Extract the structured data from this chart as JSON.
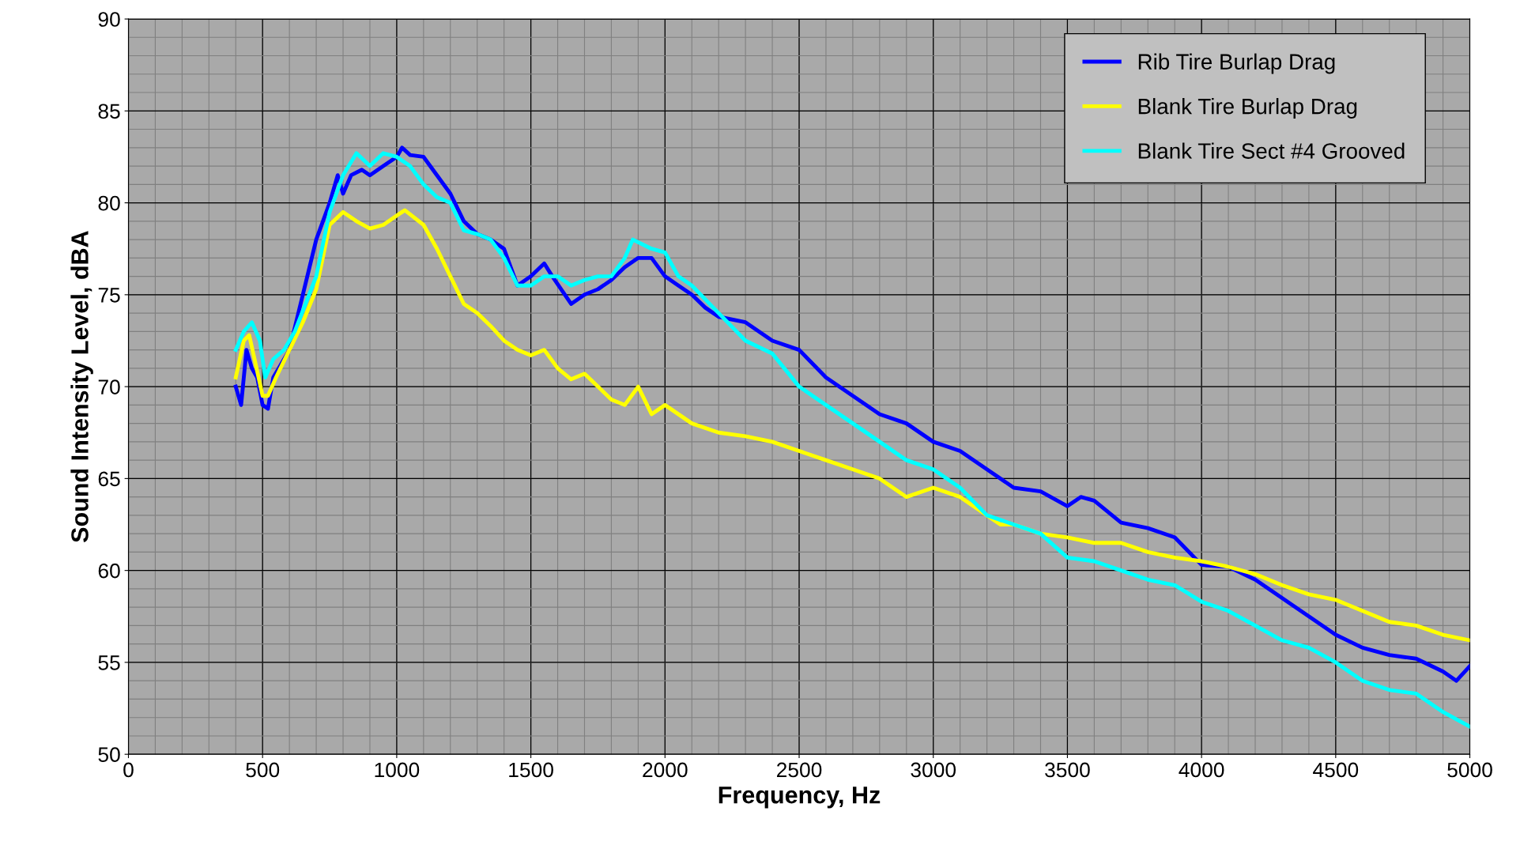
{
  "chart_data": {
    "type": "line",
    "xlabel": "Frequency, Hz",
    "ylabel": "Sound Intensity Level, dBA",
    "xlim": [
      0,
      5000
    ],
    "xticks": [
      0,
      500,
      1000,
      1500,
      2000,
      2500,
      3000,
      3500,
      4000,
      4500,
      5000
    ],
    "ylim": [
      50,
      90
    ],
    "yticks": [
      50,
      55,
      60,
      65,
      70,
      75,
      80,
      85,
      90
    ],
    "grid": true,
    "legend": "top right",
    "marker": "none",
    "line_style": "solid",
    "series": [
      {
        "name": "Rib Tire Burlap Drag",
        "color": "#0000ff",
        "x": [
          400,
          420,
          440,
          460,
          480,
          500,
          520,
          540,
          560,
          600,
          650,
          700,
          750,
          780,
          800,
          830,
          870,
          900,
          950,
          1000,
          1020,
          1050,
          1100,
          1150,
          1200,
          1250,
          1300,
          1350,
          1400,
          1450,
          1500,
          1550,
          1580,
          1650,
          1700,
          1750,
          1800,
          1850,
          1900,
          1950,
          2000,
          2050,
          2100,
          2150,
          2200,
          2300,
          2400,
          2500,
          2600,
          2700,
          2800,
          2900,
          3000,
          3100,
          3200,
          3300,
          3400,
          3500,
          3550,
          3600,
          3700,
          3800,
          3900,
          4000,
          4100,
          4200,
          4300,
          4400,
          4500,
          4600,
          4700,
          4800,
          4900,
          4950,
          5000
        ],
        "values": [
          70,
          69,
          72,
          71,
          70.5,
          69,
          68.8,
          70.5,
          71,
          72,
          75,
          78,
          80,
          81.5,
          80.5,
          81.5,
          81.8,
          81.5,
          82,
          82.5,
          83,
          82.6,
          82.5,
          81.5,
          80.5,
          79,
          78.3,
          78,
          77.5,
          75.5,
          76,
          76.7,
          76,
          74.5,
          75,
          75.3,
          75.8,
          76.5,
          77,
          77,
          76,
          75.5,
          75,
          74.3,
          73.8,
          73.5,
          72.5,
          72,
          70.5,
          69.5,
          68.5,
          68,
          67,
          66.5,
          65.5,
          64.5,
          64.3,
          63.5,
          64,
          63.8,
          62.6,
          62.3,
          61.8,
          60.3,
          60.2,
          59.5,
          58.5,
          57.5,
          56.5,
          55.8,
          55.4,
          55.2,
          54.5,
          54,
          54.8
        ]
      },
      {
        "name": "Blank Tire Burlap Drag",
        "color": "#ffff00",
        "x": [
          400,
          430,
          450,
          470,
          500,
          520,
          550,
          600,
          650,
          700,
          750,
          800,
          850,
          900,
          950,
          1000,
          1030,
          1100,
          1150,
          1200,
          1250,
          1300,
          1350,
          1400,
          1450,
          1500,
          1550,
          1600,
          1650,
          1700,
          1750,
          1800,
          1850,
          1900,
          1950,
          2000,
          2100,
          2200,
          2300,
          2400,
          2500,
          2600,
          2700,
          2800,
          2900,
          3000,
          3100,
          3200,
          3250,
          3300,
          3400,
          3500,
          3600,
          3700,
          3800,
          3900,
          4000,
          4100,
          4200,
          4300,
          4400,
          4500,
          4600,
          4700,
          4800,
          4900,
          5000
        ],
        "values": [
          70.5,
          72.5,
          72.8,
          71.5,
          69.5,
          69.5,
          70.5,
          72,
          73.5,
          75.3,
          78.8,
          79.5,
          79,
          78.6,
          78.8,
          79.3,
          79.6,
          78.8,
          77.5,
          76,
          74.5,
          74,
          73.3,
          72.5,
          72,
          71.7,
          72,
          71,
          70.4,
          70.7,
          70,
          69.3,
          69,
          70,
          68.5,
          69,
          68,
          67.5,
          67.3,
          67,
          66.5,
          66,
          65.5,
          65,
          64,
          64.5,
          64,
          63,
          62.5,
          62.5,
          62,
          61.8,
          61.5,
          61.5,
          61,
          60.7,
          60.5,
          60.2,
          59.8,
          59.2,
          58.7,
          58.4,
          57.8,
          57.2,
          57,
          56.5,
          56.2
        ]
      },
      {
        "name": "Blank Tire Sect #4 Grooved",
        "color": "#00ffff",
        "x": [
          400,
          430,
          460,
          490,
          510,
          540,
          580,
          620,
          660,
          700,
          750,
          800,
          850,
          900,
          950,
          1000,
          1050,
          1100,
          1150,
          1200,
          1250,
          1300,
          1350,
          1400,
          1450,
          1500,
          1550,
          1600,
          1650,
          1700,
          1750,
          1800,
          1850,
          1880,
          1950,
          2000,
          2050,
          2100,
          2200,
          2300,
          2400,
          2500,
          2600,
          2700,
          2800,
          2900,
          3000,
          3100,
          3200,
          3300,
          3400,
          3500,
          3600,
          3700,
          3800,
          3900,
          4000,
          4100,
          4200,
          4300,
          4400,
          4500,
          4600,
          4700,
          4800,
          4900,
          5000
        ],
        "values": [
          72,
          73,
          73.5,
          72.5,
          70.5,
          71.5,
          72,
          73,
          74.5,
          76,
          79.5,
          81.5,
          82.7,
          82,
          82.7,
          82.5,
          82,
          81,
          80.3,
          80,
          78.5,
          78.3,
          78,
          77,
          75.5,
          75.5,
          76,
          76,
          75.5,
          75.8,
          76,
          76,
          77,
          78,
          77.5,
          77.3,
          76,
          75.5,
          74,
          72.5,
          71.8,
          70,
          69,
          68,
          67,
          66,
          65.5,
          64.5,
          63,
          62.5,
          62,
          60.7,
          60.5,
          60,
          59.5,
          59.2,
          58.3,
          57.8,
          57,
          56.2,
          55.8,
          55,
          54,
          53.5,
          53.3,
          52.3,
          51.5
        ]
      }
    ]
  }
}
